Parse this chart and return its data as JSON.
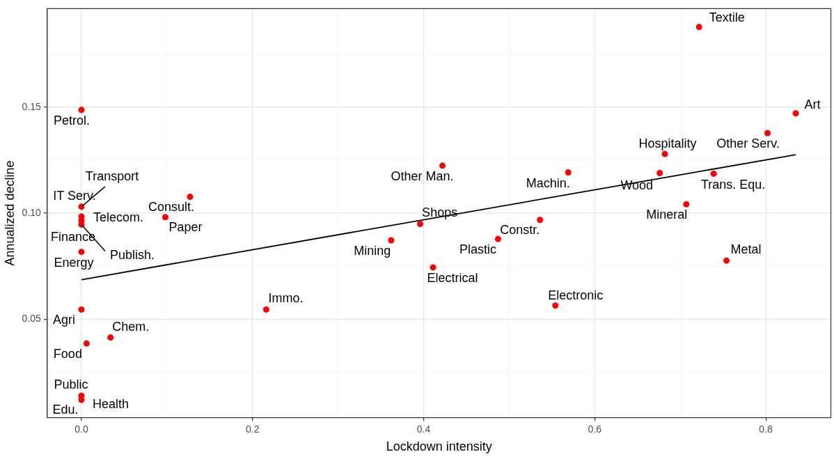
{
  "chart_data": {
    "type": "scatter",
    "xlabel": "Lockdown intensity",
    "ylabel": "Annualized decline",
    "xlim": [
      -0.04,
      0.876
    ],
    "ylim": [
      0.0035,
      0.1965
    ],
    "xticks": [
      {
        "value": 0,
        "label": "0.0"
      },
      {
        "value": 0.1,
        "label": null
      },
      {
        "value": 0.2,
        "label": "0.2"
      },
      {
        "value": 0.3,
        "label": null
      },
      {
        "value": 0.4,
        "label": "0.4"
      },
      {
        "value": 0.5,
        "label": null
      },
      {
        "value": 0.6,
        "label": "0.6"
      },
      {
        "value": 0.7,
        "label": null
      },
      {
        "value": 0.8,
        "label": "0.8"
      }
    ],
    "yticks": [
      {
        "value": 0.025,
        "label": null
      },
      {
        "value": 0.05,
        "label": "0.05"
      },
      {
        "value": 0.075,
        "label": null
      },
      {
        "value": 0.1,
        "label": "0.10"
      },
      {
        "value": 0.125,
        "label": null
      },
      {
        "value": 0.15,
        "label": "0.15"
      },
      {
        "value": 0.175,
        "label": null
      }
    ],
    "grid": true,
    "legend": false,
    "series": [
      {
        "marker": "circle",
        "color": "#ff0000",
        "x": [
          0.722,
          0.835,
          0,
          0.802,
          0.682,
          0.422,
          0.569,
          0.676,
          0.739,
          0.127,
          null,
          0,
          0,
          0,
          0,
          0.707,
          0.098,
          0.396,
          0.536,
          0.487,
          0.362,
          0,
          0.411,
          0.754,
          0.216,
          0.554,
          0,
          0.034,
          0.006,
          0,
          null,
          0
        ],
        "values": [
          0.1878,
          0.1471,
          0.1487,
          0.1378,
          0.1279,
          0.1224,
          0.1192,
          0.1189,
          0.1186,
          0.1077,
          null,
          0.103,
          0.0984,
          0.0965,
          0.0946,
          0.1042,
          0.0981,
          0.0949,
          0.0968,
          0.0878,
          0.0872,
          0.0817,
          0.0744,
          0.0776,
          0.0545,
          0.0564,
          0.0545,
          0.0413,
          0.0385,
          0.0138,
          null,
          0.0119
        ]
      },
      {
        "type": "line",
        "marker": "none",
        "color": "#000000",
        "x": [
          0,
          0.835
        ],
        "values": [
          0.0686,
          0.1276
        ]
      }
    ],
    "annotations": [
      {
        "text": "Textile",
        "x": 0.722,
        "y": 0.1878
      },
      {
        "text": "Art",
        "x": 0.835,
        "y": 0.1471
      },
      {
        "text": "Petrol.",
        "x": 0,
        "y": 0.1487
      },
      {
        "text": "Other Serv.",
        "x": 0.802,
        "y": 0.1378
      },
      {
        "text": "Hospitality",
        "x": 0.682,
        "y": 0.1279
      },
      {
        "text": "Other Man.",
        "x": 0.422,
        "y": 0.1224
      },
      {
        "text": "Machin.",
        "x": 0.569,
        "y": 0.1192
      },
      {
        "text": "Wood",
        "x": 0.676,
        "y": 0.1189
      },
      {
        "text": "Trans. Equ.",
        "x": 0.739,
        "y": 0.1186
      },
      {
        "text": "Consult.",
        "x": 0.127,
        "y": 0.1077
      },
      {
        "text": "IT Serv.",
        "x": 0,
        "y": 0.1027
      },
      {
        "text": "Transport",
        "x": 0,
        "y": 0.103
      },
      {
        "text": "Telecom.",
        "x": 0,
        "y": 0.0984
      },
      {
        "text": "Finance",
        "x": 0,
        "y": 0.0965
      },
      {
        "text": "Publish.",
        "x": 0,
        "y": 0.0946
      },
      {
        "text": "Mineral",
        "x": 0.707,
        "y": 0.1042
      },
      {
        "text": "Paper",
        "x": 0.098,
        "y": 0.0981
      },
      {
        "text": "Shops",
        "x": 0.396,
        "y": 0.0949
      },
      {
        "text": "Constr.",
        "x": 0.536,
        "y": 0.0968
      },
      {
        "text": "Plastic",
        "x": 0.487,
        "y": 0.0878
      },
      {
        "text": "Mining",
        "x": 0.362,
        "y": 0.0872
      },
      {
        "text": "Energy",
        "x": 0,
        "y": 0.0817
      },
      {
        "text": "Electrical",
        "x": 0.411,
        "y": 0.0744
      },
      {
        "text": "Metal",
        "x": 0.754,
        "y": 0.0776
      },
      {
        "text": "Immo.",
        "x": 0.216,
        "y": 0.0545
      },
      {
        "text": "Electronic",
        "x": 0.554,
        "y": 0.0564
      },
      {
        "text": "Agri",
        "x": 0,
        "y": 0.0545
      },
      {
        "text": "Chem.",
        "x": 0.034,
        "y": 0.0413
      },
      {
        "text": "Food",
        "x": 0.006,
        "y": 0.0385
      },
      {
        "text": "Public",
        "x": 0,
        "y": 0.0138
      },
      {
        "text": "Edu.",
        "x": 0,
        "y": 0.0125
      },
      {
        "text": "Health",
        "x": 0,
        "y": 0.0119
      }
    ]
  }
}
